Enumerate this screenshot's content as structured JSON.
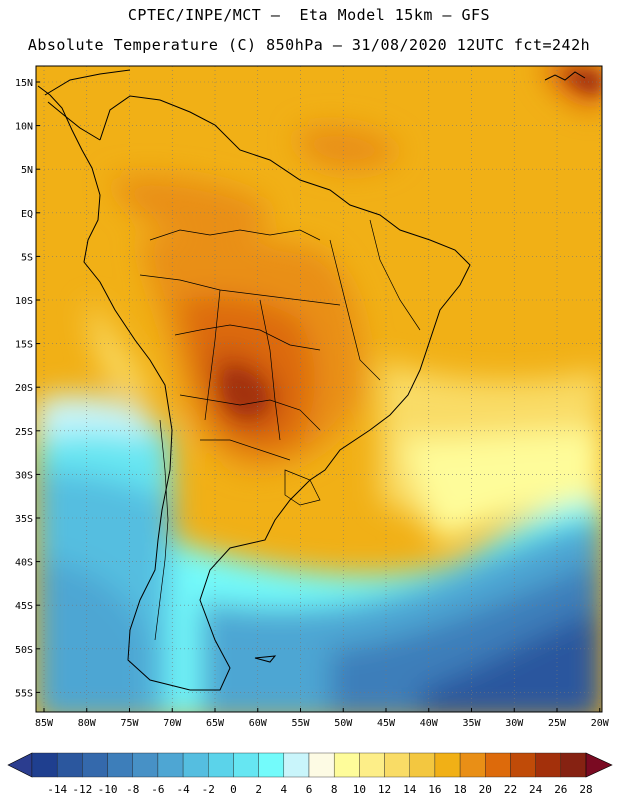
{
  "header": {
    "line1": "CPTEC/INPE/MCT –  Eta Model 15km – GFS",
    "line2": "Absolute Temperature (C) 850hPa – 31/08/2020 12UTC fct=242h"
  },
  "map": {
    "lat_labels": [
      "15N",
      "10N",
      "5N",
      "EQ",
      "5S",
      "10S",
      "15S",
      "20S",
      "25S",
      "30S",
      "35S",
      "40S",
      "45S",
      "50S",
      "55S"
    ],
    "lon_labels": [
      "85W",
      "80W",
      "75W",
      "70W",
      "65W",
      "60W",
      "55W",
      "50W",
      "45W",
      "40W",
      "35W",
      "30W",
      "25W",
      "20W"
    ],
    "extent": {
      "lon_min": -86,
      "lon_max": -19,
      "lat_min": -58,
      "lat_max": 17
    }
  },
  "colorbar": {
    "labels": [
      "-14",
      "-12",
      "-10",
      "-8",
      "-6",
      "-4",
      "-2",
      "0",
      "2",
      "4",
      "6",
      "8",
      "10",
      "12",
      "14",
      "16",
      "18",
      "20",
      "22",
      "24",
      "26",
      "28"
    ],
    "colors": [
      "#1f3f8f",
      "#2b579e",
      "#3469ac",
      "#3d7eba",
      "#4791c6",
      "#4ea6d3",
      "#55bee0",
      "#5bd3ea",
      "#66e6f2",
      "#73fbfb",
      "#c9f5fb",
      "#fdfbe4",
      "#fefc9a",
      "#fdee88",
      "#f9dc66",
      "#f3c740",
      "#f1b016",
      "#e98f16",
      "#dd6a0b",
      "#c04b08",
      "#a3300b",
      "#862212"
    ],
    "under_color": "#2b3d8f",
    "over_color": "#7a0a22"
  }
}
